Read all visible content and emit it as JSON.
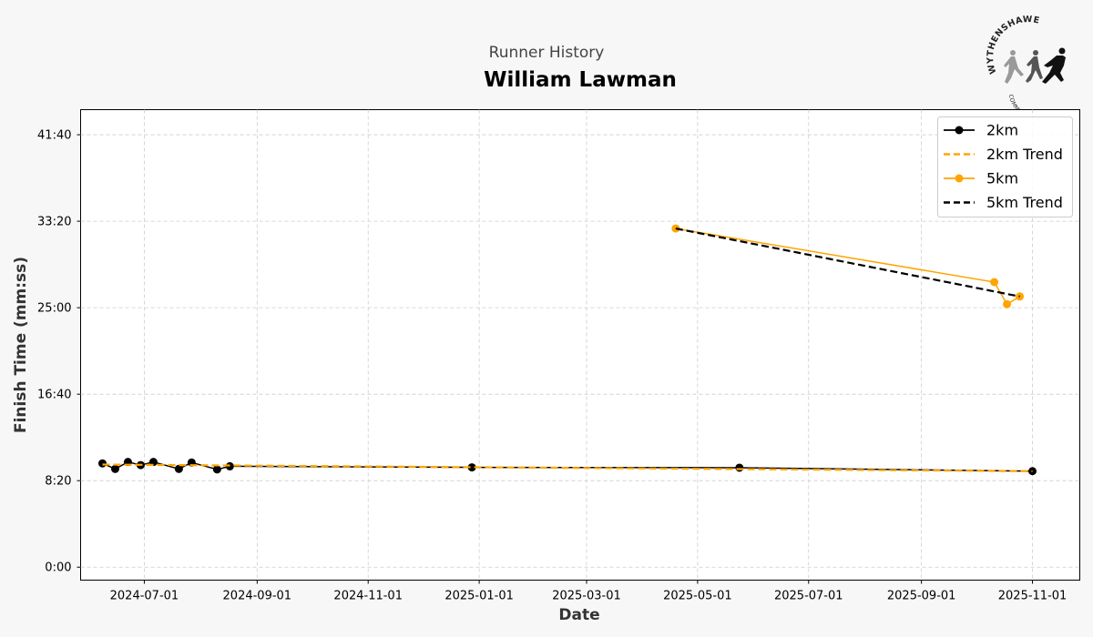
{
  "chart_data": {
    "type": "line",
    "subtitle": "Runner History",
    "title": "William Lawman",
    "xlabel": "Date",
    "ylabel": "Finish Time (mm:ss)",
    "x_ticks": [
      "2024-07-01",
      "2024-09-01",
      "2024-11-01",
      "2025-01-01",
      "2025-03-01",
      "2025-05-01",
      "2025-07-01",
      "2025-09-01",
      "2025-11-01"
    ],
    "xlim": [
      "2024-05-27",
      "2025-11-27"
    ],
    "y_ticks": [
      {
        "label": "0:00",
        "seconds": 0
      },
      {
        "label": "8:20",
        "seconds": 500
      },
      {
        "label": "16:40",
        "seconds": 1000
      },
      {
        "label": "25:00",
        "seconds": 1500
      },
      {
        "label": "33:20",
        "seconds": 2000
      },
      {
        "label": "41:40",
        "seconds": 2500
      }
    ],
    "ylim_seconds": [
      -75,
      2645
    ],
    "grid": true,
    "legend_position": "upper right",
    "series": [
      {
        "name": "2km",
        "color": "#000000",
        "style": "solid-markers",
        "points": [
          {
            "date": "2024-06-08",
            "seconds": 600
          },
          {
            "date": "2024-06-15",
            "seconds": 568
          },
          {
            "date": "2024-06-22",
            "seconds": 608
          },
          {
            "date": "2024-06-29",
            "seconds": 590
          },
          {
            "date": "2024-07-06",
            "seconds": 608
          },
          {
            "date": "2024-07-20",
            "seconds": 568
          },
          {
            "date": "2024-07-27",
            "seconds": 605
          },
          {
            "date": "2024-08-10",
            "seconds": 565
          },
          {
            "date": "2024-08-17",
            "seconds": 583
          },
          {
            "date": "2024-12-28",
            "seconds": 577
          },
          {
            "date": "2025-05-24",
            "seconds": 575
          },
          {
            "date": "2025-11-01",
            "seconds": 555
          }
        ]
      },
      {
        "name": "2km Trend",
        "color": "#ffa500",
        "style": "dashed",
        "points": [
          {
            "date": "2024-06-08",
            "seconds": 593
          },
          {
            "date": "2025-11-01",
            "seconds": 555
          }
        ]
      },
      {
        "name": "5km",
        "color": "#ffa500",
        "style": "solid-markers",
        "points": [
          {
            "date": "2025-04-19",
            "seconds": 1958
          },
          {
            "date": "2025-10-11",
            "seconds": 1648
          },
          {
            "date": "2025-10-18",
            "seconds": 1520
          },
          {
            "date": "2025-10-25",
            "seconds": 1565
          }
        ]
      },
      {
        "name": "5km Trend",
        "color": "#000000",
        "style": "dashed",
        "points": [
          {
            "date": "2025-04-19",
            "seconds": 1958
          },
          {
            "date": "2025-10-25",
            "seconds": 1565
          }
        ]
      }
    ]
  },
  "logo": {
    "name": "WYTHENSHAWE",
    "tagline": "COMMUNITY RUN",
    "colors": [
      "#999999",
      "#555555",
      "#111111"
    ]
  }
}
